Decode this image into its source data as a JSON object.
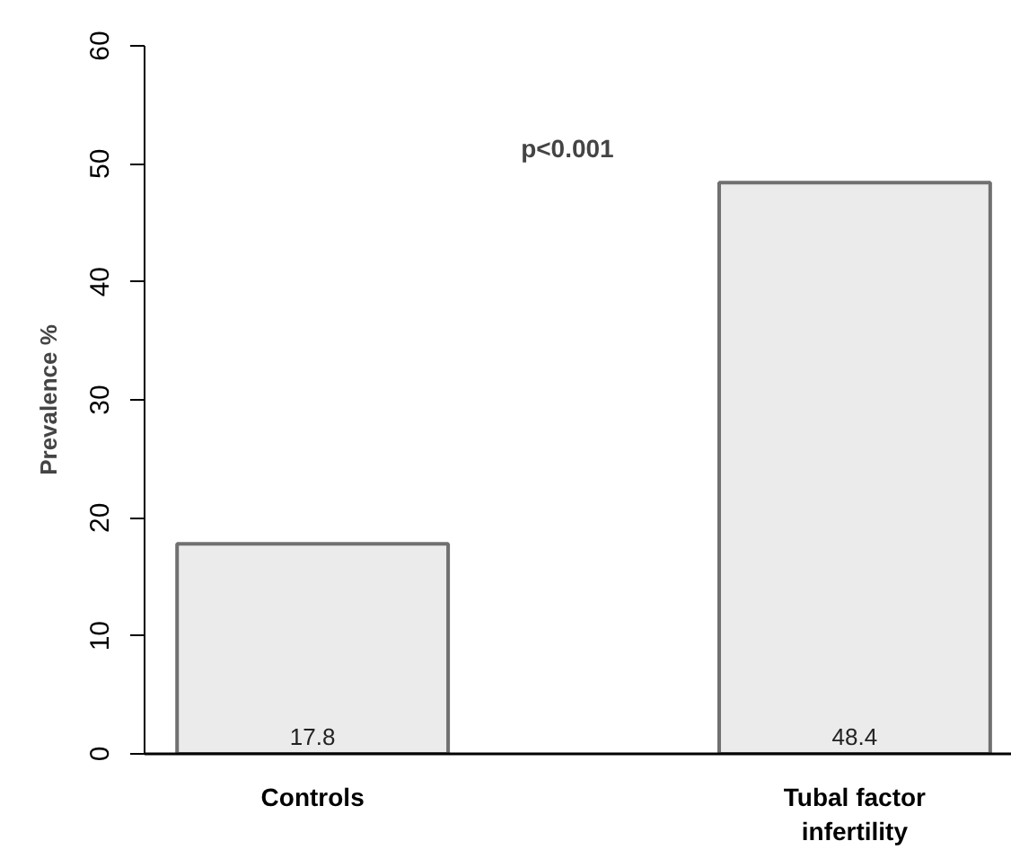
{
  "chart_data": {
    "type": "bar",
    "categories": [
      "Controls",
      "Tubal factor\ninfertility"
    ],
    "values": [
      17.8,
      48.4
    ],
    "color": "#ebebeb",
    "ylabel": "Prevalence %",
    "ylim": [
      0,
      60
    ],
    "yticks": [
      0,
      10,
      20,
      30,
      40,
      50,
      60
    ],
    "data_labels": true,
    "annotations": [
      "p<0.001"
    ]
  }
}
